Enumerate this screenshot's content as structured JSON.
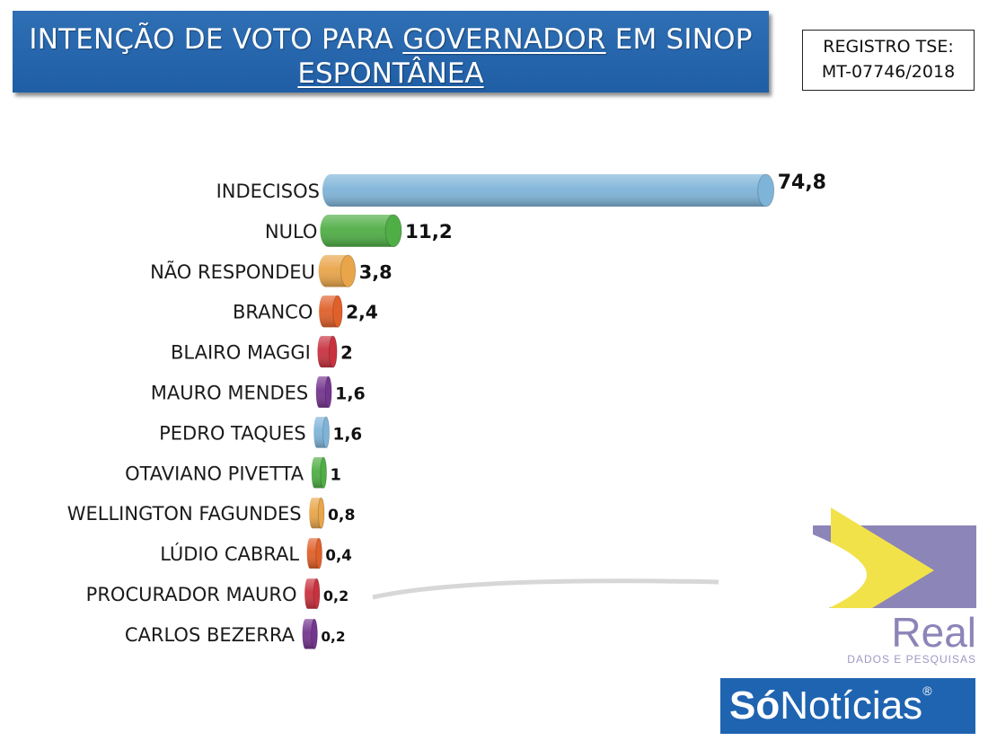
{
  "header": {
    "title_pre": "INTENÇÃO DE VOTO PARA ",
    "title_underlined": "GOVERNADOR",
    "title_post": " EM SINOP",
    "subtitle": "ESPONTÂNEA"
  },
  "registro": {
    "line1": "REGISTRO TSE:",
    "line2": "MT-07746/2018"
  },
  "chart_data": {
    "type": "bar",
    "orientation": "horizontal",
    "categories": [
      "INDECISOS",
      "NULO",
      "NÃO RESPONDEU",
      "BRANCO",
      "BLAIRO MAGGI",
      "MAURO MENDES",
      "PEDRO TAQUES",
      "OTAVIANO PIVETTA",
      "WELLINGTON FAGUNDES",
      "LÚDIO CABRAL",
      "PROCURADOR MAURO",
      "CARLOS BEZERRA"
    ],
    "values": [
      74.8,
      11.2,
      3.8,
      2.4,
      2,
      1.6,
      1.6,
      1,
      0.8,
      0.4,
      0.2,
      0.2
    ],
    "value_labels": [
      "74,8",
      "11,2",
      "3,8",
      "2,4",
      "2",
      "1,6",
      "1,6",
      "1",
      "0,8",
      "0,4",
      "0,2",
      "0,2"
    ],
    "colors": [
      "#7fb4d9",
      "#4fae45",
      "#e9a54a",
      "#e0602a",
      "#c8323f",
      "#74358f",
      "#7fb4d9",
      "#4fae45",
      "#e9a54a",
      "#e0602a",
      "#c8323f",
      "#74358f"
    ],
    "xlim": [
      0,
      80
    ],
    "grid": false,
    "legend": "none"
  },
  "logo": {
    "brand": "Real",
    "tagline": "DADOS E PESQUISAS"
  },
  "footer": {
    "brand_bold": "Só",
    "brand_rest": "Notícias",
    "registered": "®"
  }
}
